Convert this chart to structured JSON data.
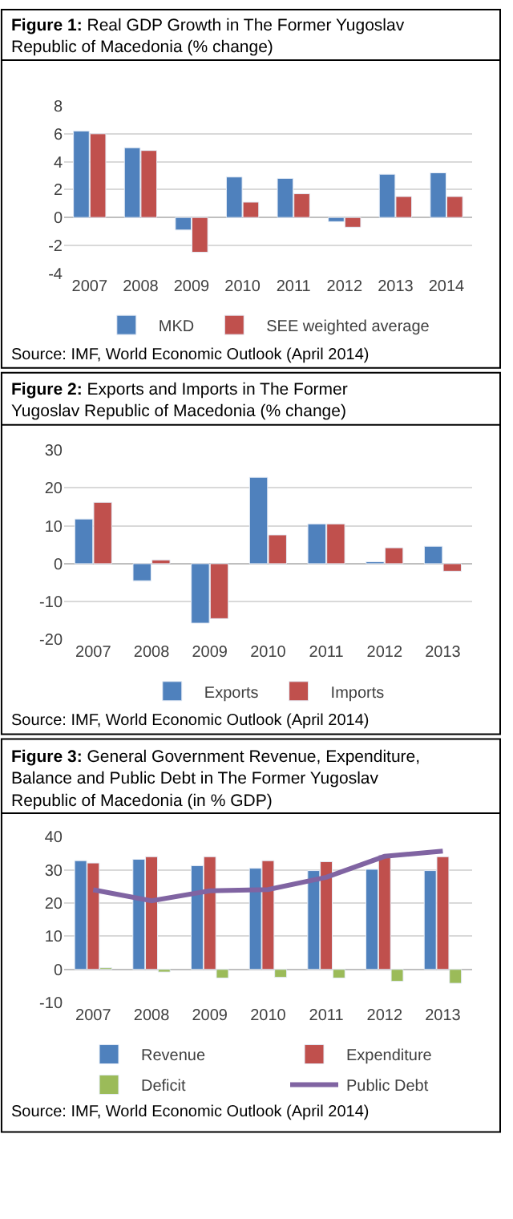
{
  "chart_data": [
    {
      "type": "bar",
      "title": "Figure 1: Real GDP Growth in The Former Yugoslav Republic of Macedonia (% change)",
      "categories": [
        "2007",
        "2008",
        "2009",
        "2010",
        "2011",
        "2012",
        "2013",
        "2014"
      ],
      "series": [
        {
          "name": "MKD",
          "color": "#4f81bd",
          "values": [
            6.2,
            5.0,
            -0.9,
            2.9,
            2.8,
            -0.3,
            3.1,
            3.2
          ]
        },
        {
          "name": "SEE weighted average",
          "color": "#c0504d",
          "values": [
            6.0,
            4.8,
            -2.5,
            1.1,
            1.7,
            -0.7,
            1.5,
            1.5
          ]
        }
      ],
      "ylim": [
        -4,
        8
      ],
      "yticks": [
        -4,
        -2,
        0,
        2,
        4,
        6,
        8
      ],
      "grid": "y",
      "legend": "bottom",
      "annotations": [
        "Source: IMF, World Economic Outlook (April 2014)"
      ]
    },
    {
      "type": "bar",
      "title": "Figure 2: Exports and Imports in The Former Yugoslav Republic of Macedonia (% change)",
      "categories": [
        "2007",
        "2008",
        "2009",
        "2010",
        "2011",
        "2012",
        "2013"
      ],
      "series": [
        {
          "name": "Exports",
          "color": "#4f81bd",
          "values": [
            11.8,
            -4.5,
            -15.7,
            22.8,
            10.5,
            0.5,
            4.6
          ]
        },
        {
          "name": "Imports",
          "color": "#c0504d",
          "values": [
            16.2,
            1.0,
            -14.5,
            7.6,
            10.5,
            4.2,
            -2.0
          ]
        }
      ],
      "ylim": [
        -20,
        30
      ],
      "yticks": [
        -20,
        -10,
        0,
        10,
        20,
        30
      ],
      "grid": "y",
      "legend": "bottom",
      "annotations": [
        "Source: IMF, World Economic Outlook (April 2014)"
      ]
    },
    {
      "type": "bar",
      "title": "Figure 3: General Government Revenue, Expenditure, Balance and Public Debt in The Former Yugoslav Republic of Macedonia (in % GDP)",
      "categories": [
        "2007",
        "2008",
        "2009",
        "2010",
        "2011",
        "2012",
        "2013"
      ],
      "series": [
        {
          "name": "Revenue",
          "color": "#4f81bd",
          "values": [
            32.8,
            33.2,
            31.3,
            30.5,
            29.8,
            30.2,
            29.8
          ]
        },
        {
          "name": "Expenditure",
          "color": "#c0504d",
          "values": [
            32.1,
            34.0,
            34.0,
            32.8,
            32.5,
            34.5,
            34.0
          ]
        },
        {
          "name": "Deficit",
          "color": "#9bbb59",
          "values": [
            0.5,
            -0.8,
            -2.6,
            -2.4,
            -2.6,
            -3.6,
            -4.2
          ]
        },
        {
          "name": "Public Debt",
          "color": "#8064a2",
          "type": "line",
          "values": [
            24.0,
            20.7,
            23.7,
            24.1,
            27.8,
            34.1,
            35.7
          ]
        }
      ],
      "ylim": [
        -10,
        40
      ],
      "yticks": [
        -10,
        0,
        10,
        20,
        30,
        40
      ],
      "grid": "y",
      "legend": "bottom",
      "marker": "none",
      "annotations": [
        "Source: IMF, World Economic Outlook (April 2014)"
      ]
    }
  ]
}
